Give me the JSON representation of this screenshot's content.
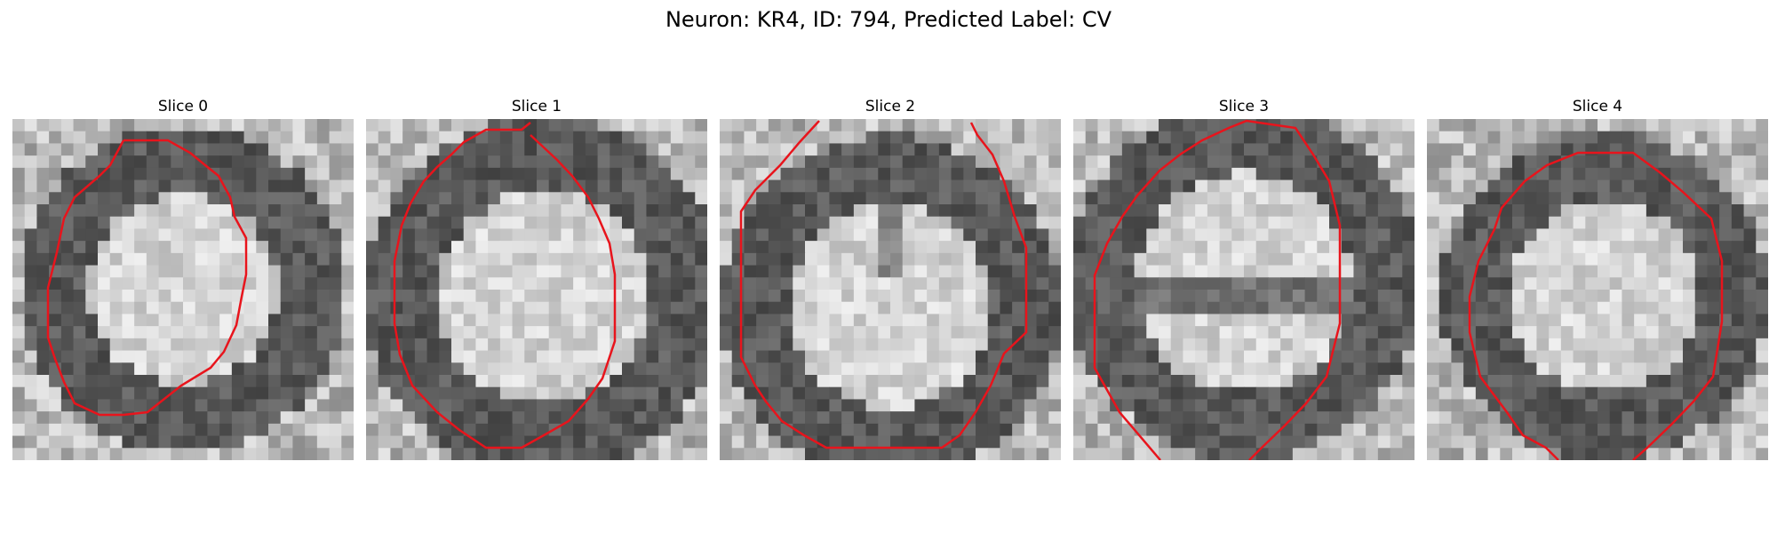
{
  "figure": {
    "title": "Neuron: KR4, ID: 794, Predicted Label: CV"
  },
  "panels": [
    {
      "title": "Slice 0",
      "pattern": "ring-round"
    },
    {
      "title": "Slice 1",
      "pattern": "ring-large"
    },
    {
      "title": "Slice 2",
      "pattern": "ring-bilobed"
    },
    {
      "title": "Slice 3",
      "pattern": "ring-split"
    },
    {
      "title": "Slice 4",
      "pattern": "ring-round-right"
    }
  ],
  "colors": {
    "contour": "#e8141c",
    "image_min": "#000000",
    "image_max": "#ffffff"
  },
  "grid_size": 28
}
